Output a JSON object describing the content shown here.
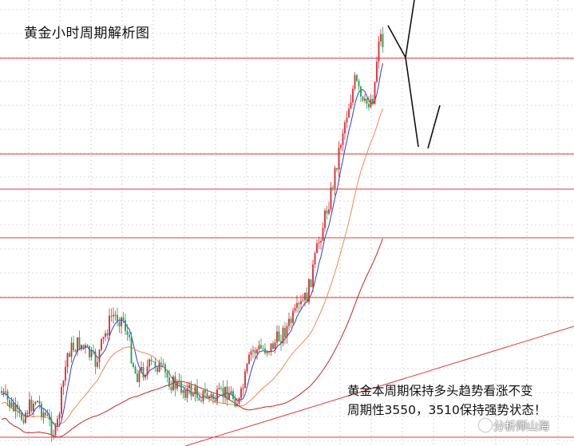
{
  "title": "黄金小时周期解析图",
  "annotation": {
    "line1": "黄金本周期保持多头趋势看涨不变",
    "line2": "周期性3550，3510保持强势状态！"
  },
  "watermark": "分析师山海",
  "colors": {
    "background": "#ffffff",
    "grid": "#bcbcbc",
    "level_line": "#e23b3b",
    "trend_line": "#e23b3b",
    "bull_candle": "#e0262a",
    "bear_candle": "#1aa34a",
    "ma_fast": "#2b3fd6",
    "ma_mid": "#f08a4b",
    "ma_slow": "#c72626",
    "projection": "#111111"
  },
  "chart_data": {
    "type": "candlestick",
    "title": "黄金小时周期解析图",
    "grid": true,
    "series": [
      {
        "kind": "candles"
      },
      {
        "kind": "moving-average",
        "color": "#2b3fd6"
      },
      {
        "kind": "moving-average",
        "color": "#f08a4b"
      },
      {
        "kind": "moving-average",
        "color": "#c72626"
      }
    ],
    "horizontal_levels_count": 6,
    "rising_trendline": true,
    "projection_path": "pullback then rebound"
  }
}
